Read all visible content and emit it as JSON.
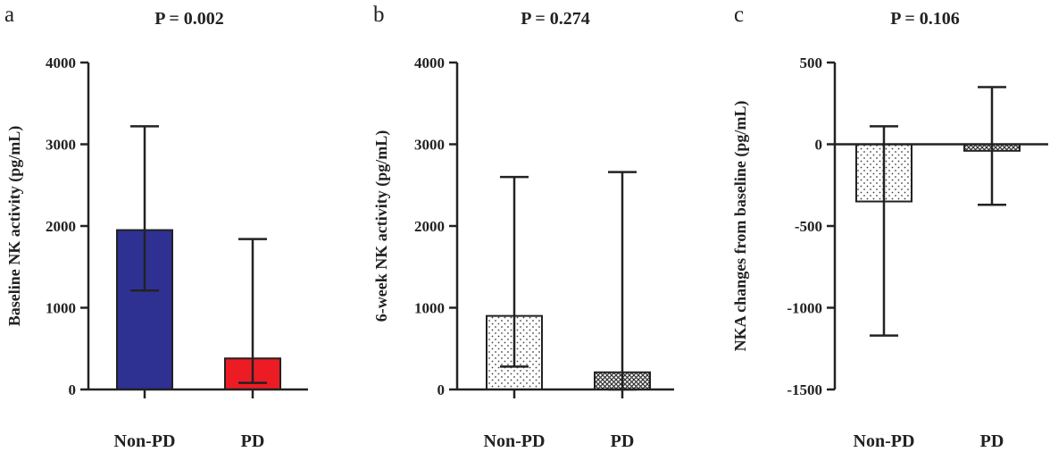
{
  "chart_data": [
    {
      "type": "bar",
      "panel_label": "a",
      "title": "P = 0.002",
      "ylabel": "Baseline NK activity (pg/mL)",
      "categories": [
        "Non-PD",
        "PD"
      ],
      "values": [
        1950,
        380
      ],
      "error_low": [
        1210,
        80
      ],
      "error_high": [
        3220,
        1840
      ],
      "ylim": [
        0,
        4000
      ],
      "yticks": [
        "0",
        "1000",
        "2000",
        "3000",
        "4000"
      ],
      "colors": [
        "#2e3192",
        "#ed1c24"
      ],
      "patterns": [
        "solid",
        "solid"
      ]
    },
    {
      "type": "bar",
      "panel_label": "b",
      "title": "P = 0.274",
      "ylabel": "6-week NK activity (pg/mL)",
      "categories": [
        "Non-PD",
        "PD"
      ],
      "values": [
        900,
        210
      ],
      "error_low": [
        280,
        0
      ],
      "error_high": [
        2600,
        2660
      ],
      "ylim": [
        0,
        4000
      ],
      "yticks": [
        "0",
        "1000",
        "2000",
        "3000",
        "4000"
      ],
      "colors": [
        "#ffffff",
        "#ffffff"
      ],
      "patterns": [
        "dots",
        "crosshatch"
      ]
    },
    {
      "type": "bar",
      "panel_label": "c",
      "title": "P = 0.106",
      "ylabel": "NKA changes from baseline (pg/mL)",
      "categories": [
        "Non-PD",
        "PD"
      ],
      "values": [
        -350,
        -40
      ],
      "error_low": [
        -1170,
        -370
      ],
      "error_high": [
        110,
        350
      ],
      "ylim": [
        -1500,
        500
      ],
      "yticks": [
        "-1500",
        "-1000",
        "-500",
        "0",
        "500"
      ],
      "colors": [
        "#ffffff",
        "#ffffff"
      ],
      "patterns": [
        "dots",
        "crosshatch"
      ]
    }
  ]
}
